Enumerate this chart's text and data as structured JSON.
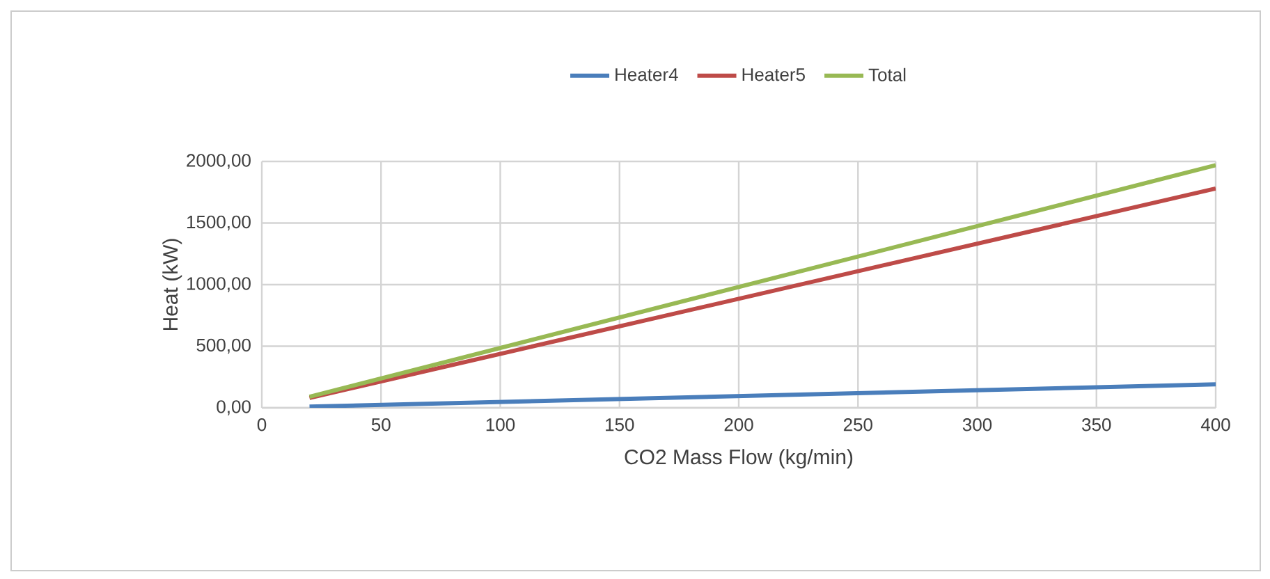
{
  "chart_data": {
    "type": "line",
    "xlabel": "CO2 Mass Flow (kg/min)",
    "ylabel": "Heat (kW)",
    "x": [
      20,
      400
    ],
    "series": [
      {
        "name": "Heater4",
        "color": "#4a7ebb",
        "values": [
          10,
          190
        ]
      },
      {
        "name": "Heater5",
        "color": "#be4b48",
        "values": [
          80,
          1780
        ]
      },
      {
        "name": "Total",
        "color": "#98b954",
        "values": [
          90,
          1970
        ]
      }
    ],
    "xlim": [
      0,
      400
    ],
    "xticks": [
      0,
      50,
      100,
      150,
      200,
      250,
      300,
      350,
      400
    ],
    "ylim": [
      0,
      2000
    ],
    "yticks": [
      {
        "value": 0,
        "label": "0,00"
      },
      {
        "value": 500,
        "label": "500,00"
      },
      {
        "value": 1000,
        "label": "1000,00"
      },
      {
        "value": 1500,
        "label": "1500,00"
      },
      {
        "value": 2000,
        "label": "2000,00"
      }
    ],
    "grid": true,
    "legend": "top",
    "marker": "none",
    "line_style": "solid"
  }
}
